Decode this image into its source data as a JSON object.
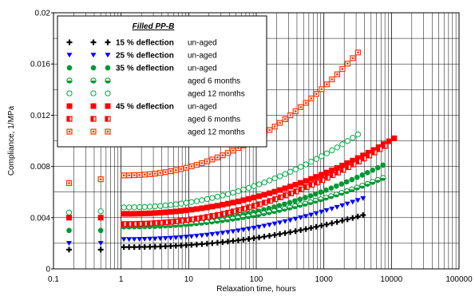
{
  "chart_data": {
    "type": "scatter",
    "xscale": "log",
    "xlim": [
      0.1,
      100000
    ],
    "ylim": [
      0,
      0.02
    ],
    "xlabel": "Relaxation time, hours",
    "ylabel": "Compliance, 1/MPa",
    "x_ticks": [
      "0.1",
      "1",
      "10",
      "100",
      "1000",
      "10000",
      "100000"
    ],
    "y_ticks": [
      "0",
      "0.004",
      "0.008",
      "0.012",
      "0.016",
      "0.02"
    ],
    "grid": "both, major and minor (log)",
    "legend": {
      "title": "Filled PP-B",
      "placement": "top-left",
      "rows": [
        {
          "bold": "15 % deflection",
          "plain": "un-aged"
        },
        {
          "bold": "25 % deflection",
          "plain": "un-aged"
        },
        {
          "bold": "35 % deflection",
          "plain": "un-aged"
        },
        {
          "bold": "",
          "plain": "aged 6 months"
        },
        {
          "bold": "",
          "plain": "aged 12 months"
        },
        {
          "bold": "45 % deflection",
          "plain": "un-aged"
        },
        {
          "bold": "",
          "plain": "aged 6 months"
        },
        {
          "bold": "",
          "plain": "aged 12 months"
        }
      ]
    },
    "colors": {
      "black": "#000000",
      "blue": "#0000ff",
      "green": "#009933",
      "red": "#ff0000",
      "orange": "#ff3300",
      "hollow_green": "#00aa44"
    },
    "series": [
      {
        "marker": "plus",
        "color": "#000000",
        "t_start": 1.1,
        "t_end": 3800,
        "x_lead": [
          0.17,
          0.5
        ],
        "y_start": 0.0017,
        "y_end": 0.0042,
        "y_lead": [
          0.0015,
          0.0015
        ]
      },
      {
        "marker": "tri-down",
        "color": "#0000ff",
        "t_start": 1.1,
        "t_end": 3800,
        "x_lead": [
          0.17,
          0.5
        ],
        "y_start": 0.0023,
        "y_end": 0.0055,
        "y_lead": [
          0.002,
          0.002
        ]
      },
      {
        "marker": "circle",
        "color": "#009933",
        "t_start": 1.1,
        "t_end": 7500,
        "x_lead": [
          0.17,
          0.5
        ],
        "y_start": 0.0033,
        "y_end": 0.0081,
        "y_lead": [
          0.003,
          0.003
        ]
      },
      {
        "marker": "circle-half",
        "color": "#009933",
        "t_start": 1.1,
        "t_end": 7500,
        "x_lead": [],
        "y_start": 0.0033,
        "y_end": 0.0071,
        "y_lead": []
      },
      {
        "marker": "circle-open",
        "color": "#00aa44",
        "t_start": 1.1,
        "t_end": 3200,
        "x_lead": [
          0.17,
          0.5
        ],
        "y_start": 0.0048,
        "y_end": 0.0105,
        "y_lead": [
          0.0044,
          0.0045
        ]
      },
      {
        "marker": "square",
        "color": "#ff0000",
        "t_start": 1.1,
        "t_end": 11000,
        "x_lead": [
          0.17,
          0.5
        ],
        "y_start": 0.0043,
        "y_end": 0.0102,
        "y_lead": [
          0.004,
          0.004
        ]
      },
      {
        "marker": "square-dot",
        "color": "#ff0000",
        "t_start": 1.1,
        "t_end": 8000,
        "x_lead": [],
        "y_start": 0.0035,
        "y_end": 0.0096,
        "y_lead": []
      },
      {
        "marker": "square-open",
        "color": "#ff3300",
        "t_start": 1.1,
        "t_end": 3200,
        "x_lead": [
          0.17,
          0.5
        ],
        "y_start": 0.0073,
        "y_end": 0.0169,
        "y_lead": [
          0.0067,
          0.007
        ]
      }
    ]
  }
}
